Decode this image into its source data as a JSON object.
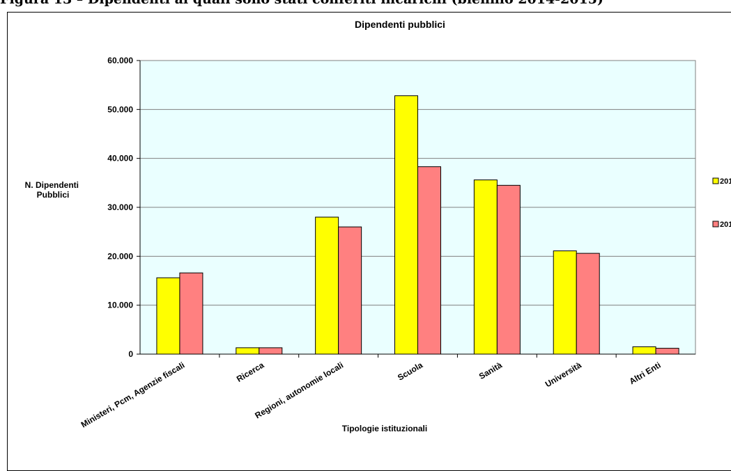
{
  "figure": {
    "caption": "Figura 13 – Dipendenti ai quali sono stati conferiti incarichi (biennio 2014-2015)"
  },
  "chart_data": {
    "type": "bar",
    "title": "Dipendenti pubblici",
    "xlabel": "Tipologie istituzionali",
    "ylabel": [
      "N. Dipendenti",
      "Pubblici"
    ],
    "ylim": [
      0,
      60000
    ],
    "yticks": [
      "0",
      "10.000",
      "20.000",
      "30.000",
      "40.000",
      "50.000",
      "60.000"
    ],
    "categories": [
      "Ministeri, Pcm, Agenzie fiscali",
      "Ricerca",
      "Regioni, autonomie locali",
      "Scuola",
      "Sanità",
      "Università",
      "Altri Enti"
    ],
    "series": [
      {
        "name": "201",
        "color": "#ffff00",
        "values": [
          15600,
          1300,
          28000,
          52800,
          35600,
          21100,
          1500
        ]
      },
      {
        "name": "201",
        "color": "#ff8080",
        "values": [
          16600,
          1300,
          26000,
          38300,
          34500,
          20600,
          1200
        ]
      }
    ],
    "grid": true,
    "plot_background": "#eaffff",
    "legend": "right"
  }
}
